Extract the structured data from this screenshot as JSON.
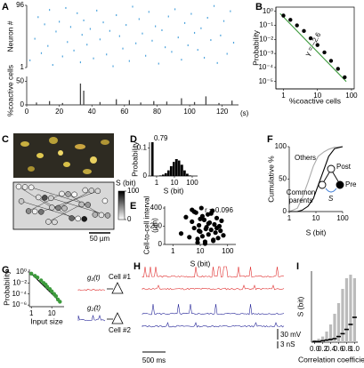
{
  "panel_labels": [
    "A",
    "B",
    "C",
    "D",
    "E",
    "F",
    "G",
    "H",
    "I"
  ],
  "chart_data": [
    {
      "type": "raster",
      "ylabel": "Neuron #",
      "ylim": [
        1,
        96
      ],
      "yticks": [
        1,
        96
      ],
      "xlim": [
        0,
        130
      ],
      "color": "#4da3dc",
      "x": [
        2,
        5,
        7,
        9,
        11,
        13,
        14,
        16,
        18,
        20,
        22,
        24,
        25,
        27,
        29,
        31,
        33,
        34,
        35,
        37,
        39,
        41,
        43,
        45,
        47,
        49,
        51,
        53,
        55,
        57,
        59,
        61,
        63,
        65,
        67,
        69,
        71,
        73,
        75,
        77,
        79,
        81,
        83,
        85,
        87,
        89,
        91,
        93,
        95,
        97,
        99,
        101,
        103,
        105,
        107,
        109,
        111,
        113,
        115,
        117,
        119,
        121,
        123,
        125,
        127
      ],
      "y": [
        12,
        45,
        78,
        23,
        67,
        34,
        89,
        5,
        56,
        71,
        18,
        92,
        40,
        63,
        27,
        84,
        9,
        51,
        73,
        36,
        60,
        15,
        88,
        44,
        70,
        21,
        57,
        3,
        81,
        49,
        30,
        66,
        11,
        94,
        38,
        75,
        53,
        19,
        86,
        42,
        64,
        7,
        58,
        32,
        79,
        25,
        90,
        47,
        13,
        69,
        35,
        83,
        54,
        28,
        61,
        16,
        77,
        43,
        95,
        8,
        50,
        72,
        22,
        87,
        39
      ]
    },
    {
      "type": "bar",
      "ylabel": "%coactive cells",
      "xlim": [
        0,
        130
      ],
      "ylim": [
        0,
        60
      ],
      "yticks": [
        0,
        50
      ],
      "xticks": [
        0,
        20,
        40,
        60,
        80,
        100,
        120
      ],
      "x_unit": "(s)",
      "color": "#444",
      "x": [
        6,
        14,
        22,
        33,
        35,
        45,
        55,
        63,
        70,
        78,
        86,
        95,
        103,
        110,
        118,
        126
      ],
      "values": [
        5,
        8,
        4,
        45,
        30,
        6,
        12,
        10,
        5,
        8,
        7,
        14,
        6,
        18,
        4,
        9
      ]
    },
    {
      "type": "scatter",
      "xlog": true,
      "ylog": true,
      "xlabel": "%coactive cells",
      "ylabel": "Probability",
      "xlim": [
        0.6,
        120
      ],
      "ylim": [
        3e-06,
        2
      ],
      "xticks": [
        1,
        10,
        100
      ],
      "yticks": [
        {
          "value": 1,
          "label": "10⁰"
        },
        {
          "value": 0.1,
          "label": "10⁻¹"
        },
        {
          "value": 0.01,
          "label": "10⁻²"
        },
        {
          "value": 0.001,
          "label": "10⁻³"
        },
        {
          "value": 0.0001,
          "label": "10⁻⁴"
        },
        {
          "value": 1e-05,
          "label": "10⁻⁵"
        }
      ],
      "color": "#000",
      "x": [
        1,
        1.6,
        2.5,
        4,
        6.3,
        10,
        16,
        25,
        40,
        63
      ],
      "values": [
        0.5,
        0.25,
        0.1,
        0.04,
        0.012,
        0.004,
        0.0012,
        0.0003,
        8e-05,
        2e-05
      ],
      "fit": {
        "color": "#3c9a3c",
        "x": [
          0.8,
          70
        ],
        "values": [
          0.7,
          1e-05
        ]
      },
      "annotation": "γ = –2.6"
    },
    {
      "type": "map",
      "colorbar": {
        "label": "S (bit)",
        "lim": [
          0,
          100
        ],
        "ticks": [
          0,
          100
        ]
      },
      "scale_bar": "50 µm",
      "values": [
        5,
        20,
        10,
        45,
        8,
        30,
        12,
        60,
        3,
        15,
        25,
        9,
        50,
        18,
        7,
        35,
        11,
        70,
        4,
        22,
        14,
        40,
        6,
        28,
        16,
        55,
        2,
        33,
        19,
        90
      ]
    },
    {
      "type": "histogram",
      "xlog": true,
      "ylabel": "Probability",
      "xlabel": "S (bit)",
      "xlim": [
        0.4,
        200
      ],
      "ylim": [
        0,
        0.12
      ],
      "yticks": [
        0,
        0.1
      ],
      "xticks": [
        1,
        10,
        100
      ],
      "color": "#000",
      "bins": [
        0.5,
        0.7,
        1,
        1.4,
        2,
        2.8,
        4,
        5.6,
        8,
        11,
        16,
        22,
        32,
        45,
        64,
        90
      ],
      "values": [
        0.79,
        0,
        0,
        0.002,
        0.005,
        0.01,
        0.02,
        0.035,
        0.05,
        0.06,
        0.055,
        0.04,
        0.02,
        0.008,
        0.002
      ],
      "value_labels": [
        "0.79",
        null,
        null,
        null,
        null,
        null,
        null,
        null,
        null,
        null,
        null,
        null,
        null,
        null,
        null
      ]
    },
    {
      "type": "scatter",
      "xlog": true,
      "ylabel": "Cell-to-cell interval (µm)",
      "xlabel": "S (bit)",
      "xlim": [
        0.5,
        200
      ],
      "ylim": [
        0,
        420
      ],
      "yticks": [
        0,
        200,
        400
      ],
      "xticks": [
        1,
        10,
        100
      ],
      "color": "#000",
      "x": [
        2,
        3,
        4,
        5,
        6,
        7,
        8,
        9,
        10,
        11,
        12,
        14,
        15,
        17,
        19,
        20,
        22,
        25,
        28,
        30,
        33,
        36,
        40,
        45,
        50,
        55,
        60,
        70,
        5,
        8,
        12,
        16,
        20,
        25,
        30,
        40,
        10,
        15,
        6,
        9
      ],
      "values": [
        120,
        300,
        80,
        250,
        180,
        350,
        60,
        210,
        140,
        400,
        90,
        270,
        30,
        190,
        330,
        110,
        240,
        160,
        370,
        50,
        220,
        130,
        290,
        70,
        200,
        150,
        260,
        100,
        380,
        20,
        310,
        170,
        230,
        340,
        40,
        180,
        280,
        10,
        360,
        150
      ],
      "annotation": "r = 0.096"
    },
    {
      "type": "line",
      "xlog": true,
      "ylabel": "Cumulative %",
      "xlabel": "S (bit)",
      "xlim": [
        1,
        100
      ],
      "ylim": [
        0,
        100
      ],
      "yticks": [
        0,
        50,
        100
      ],
      "xticks": [
        1,
        10,
        100
      ],
      "x": [
        1,
        2,
        3,
        5,
        8,
        12,
        20,
        30,
        50,
        100
      ],
      "series": [
        {
          "name": "Others",
          "color": "#aaaaaa",
          "values": [
            0,
            5,
            20,
            45,
            70,
            85,
            92,
            96,
            99,
            100
          ]
        },
        {
          "name": "Common parents",
          "color": "#000000",
          "values": [
            0,
            0,
            2,
            8,
            20,
            40,
            65,
            85,
            97,
            100
          ]
        }
      ],
      "diagram": [
        "Post",
        "Pre",
        "S"
      ]
    },
    {
      "type": "scatter",
      "xlog": true,
      "ylog": true,
      "ylabel": "Probability",
      "xlabel": "Input size",
      "xlim": [
        0.8,
        40
      ],
      "ylim": [
        5e-07,
        3
      ],
      "xticks": [
        1,
        10
      ],
      "yticks": [
        {
          "value": 1,
          "label": "10⁰"
        },
        {
          "value": 0.01,
          "label": "10⁻²"
        },
        {
          "value": 0.0001,
          "label": "10⁻⁴"
        },
        {
          "value": 1e-06,
          "label": "10⁻⁶"
        }
      ],
      "color": "#3c9a3c",
      "x": [
        1,
        1.5,
        2,
        3,
        4,
        5,
        6,
        8,
        10,
        13,
        16,
        20,
        25
      ],
      "values": [
        0.5,
        0.2,
        0.1,
        0.03,
        0.01,
        0.005,
        0.002,
        0.0008,
        0.0003,
        0.0001,
        4e-05,
        1e-05,
        4e-06
      ],
      "fit": {
        "color": "#000",
        "x": [
          1,
          25
        ],
        "values": [
          0.5,
          4e-06
        ]
      }
    },
    {
      "type": "dotbar",
      "ylabel": "S (bit)",
      "xlabel": "Correlation coefficient",
      "xlim": [
        -0.08,
        1.08
      ],
      "ylim": [
        0,
        100
      ],
      "xticks": [
        {
          "value": 0,
          "label": "0.0"
        },
        {
          "value": 0.2,
          "label": "0.2"
        },
        {
          "value": 0.4,
          "label": "0.4"
        },
        {
          "value": 0.6,
          "label": "0.6"
        },
        {
          "value": 0.8,
          "label": "0.8"
        },
        {
          "value": 1,
          "label": "1.0"
        }
      ],
      "x": [
        0,
        0.1,
        0.2,
        0.3,
        0.4,
        0.5,
        0.6,
        0.7,
        0.8,
        0.9,
        1
      ],
      "series": [
        {
          "color": "#bbbbbb",
          "values": [
            3,
            5,
            8,
            15,
            25,
            40,
            55,
            75,
            90,
            95,
            90
          ]
        },
        {
          "color": "#000000",
          "values": [
            1,
            1,
            2,
            3,
            4,
            5,
            8,
            12,
            18,
            25,
            35
          ]
        }
      ]
    }
  ],
  "panel_G": {
    "inputs": [
      "g₁(t)",
      "g₂(t)"
    ],
    "cells": [
      "Cell #1",
      "Cell #2"
    ]
  },
  "panel_H": {
    "scale_bars": [
      "30 mV",
      "3 nS",
      "500 ms"
    ]
  }
}
